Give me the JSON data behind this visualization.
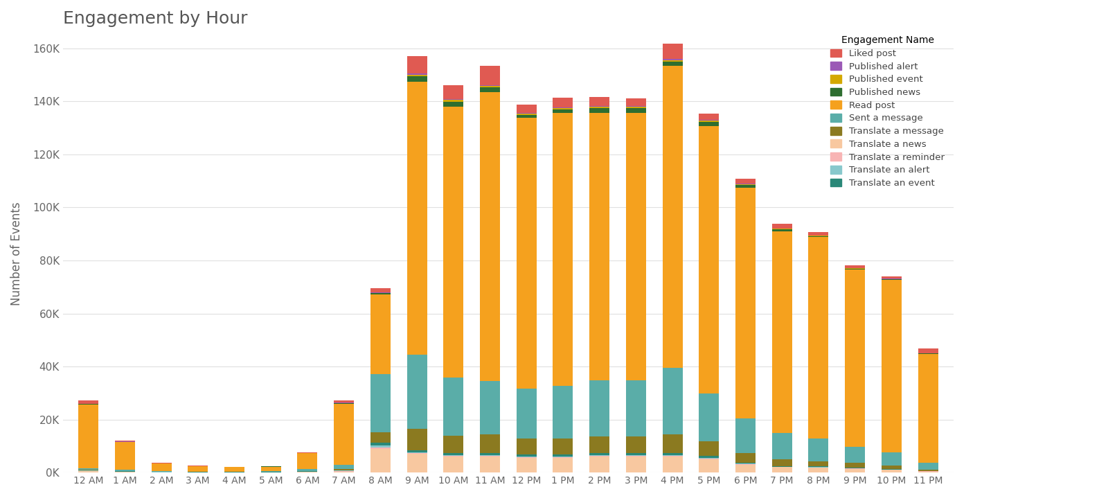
{
  "hours": [
    "12 AM",
    "1 AM",
    "2 AM",
    "3 AM",
    "4 AM",
    "5 AM",
    "6 AM",
    "7 AM",
    "8 AM",
    "9 AM",
    "10 AM",
    "11 AM",
    "12 PM",
    "1 PM",
    "2 PM",
    "3 PM",
    "4 PM",
    "5 PM",
    "6 PM",
    "7 PM",
    "8 PM",
    "9 PM",
    "10 PM",
    "11 PM"
  ],
  "title": "Engagement by Hour",
  "ylabel": "Number of Events",
  "ylim": [
    0,
    165000
  ],
  "yticks": [
    0,
    20000,
    40000,
    60000,
    80000,
    100000,
    120000,
    140000,
    160000
  ],
  "ytick_labels": [
    "0K",
    "20K",
    "40K",
    "60K",
    "80K",
    "100K",
    "120K",
    "140K",
    "160K"
  ],
  "legend_title": "Engagement Name",
  "series": {
    "Translate a news": [
      500,
      200,
      100,
      100,
      80,
      80,
      200,
      400,
      9000,
      7000,
      6000,
      6000,
      5500,
      5500,
      6000,
      6000,
      6000,
      5000,
      3000,
      2000,
      1800,
      1400,
      1000,
      400
    ],
    "Translate a reminder": [
      150,
      80,
      40,
      30,
      30,
      30,
      80,
      150,
      400,
      250,
      250,
      250,
      200,
      200,
      200,
      200,
      250,
      200,
      150,
      100,
      100,
      80,
      60,
      50
    ],
    "Translate an alert": [
      150,
      80,
      40,
      30,
      30,
      30,
      80,
      200,
      800,
      400,
      400,
      400,
      350,
      350,
      350,
      350,
      400,
      350,
      250,
      150,
      150,
      150,
      150,
      80
    ],
    "Translate an event": [
      150,
      80,
      40,
      30,
      30,
      30,
      80,
      200,
      1000,
      800,
      800,
      800,
      700,
      700,
      700,
      700,
      800,
      700,
      400,
      250,
      250,
      150,
      150,
      80
    ],
    "Translate a message": [
      250,
      150,
      80,
      60,
      50,
      60,
      200,
      500,
      4000,
      8000,
      6500,
      7000,
      6000,
      6000,
      6500,
      6500,
      7000,
      5500,
      3500,
      2500,
      2000,
      1800,
      1300,
      600
    ],
    "Sent a message": [
      400,
      400,
      150,
      150,
      150,
      300,
      600,
      1500,
      22000,
      28000,
      22000,
      20000,
      19000,
      20000,
      21000,
      21000,
      25000,
      18000,
      13000,
      10000,
      8500,
      6000,
      5000,
      2500
    ],
    "Read post": [
      24000,
      10500,
      3000,
      2000,
      1700,
      1700,
      6000,
      23000,
      30000,
      103000,
      102000,
      109000,
      102000,
      103000,
      101000,
      101000,
      114000,
      101000,
      87000,
      76000,
      76000,
      67000,
      65000,
      41000
    ],
    "Published news": [
      250,
      100,
      40,
      40,
      30,
      30,
      80,
      250,
      400,
      2000,
      2000,
      1800,
      1200,
      1300,
      1600,
      1600,
      1600,
      1500,
      1200,
      800,
      400,
      400,
      300,
      150
    ],
    "Published event": [
      80,
      40,
      15,
      15,
      15,
      15,
      40,
      80,
      150,
      600,
      550,
      550,
      500,
      500,
      550,
      550,
      550,
      500,
      300,
      200,
      150,
      150,
      80,
      40
    ],
    "Published alert": [
      80,
      40,
      15,
      15,
      15,
      15,
      40,
      80,
      150,
      400,
      300,
      300,
      250,
      250,
      250,
      250,
      300,
      250,
      150,
      100,
      80,
      80,
      40,
      40
    ],
    "Liked post": [
      1200,
      500,
      250,
      150,
      80,
      80,
      250,
      800,
      1700,
      6500,
      5200,
      7200,
      3000,
      3500,
      3500,
      3000,
      6000,
      2500,
      2000,
      1700,
      1300,
      1000,
      800,
      1800
    ]
  },
  "colors": {
    "Liked post": "#e05a52",
    "Published alert": "#9b59b6",
    "Published event": "#d4a800",
    "Published news": "#2e6e30",
    "Read post": "#f5a11e",
    "Sent a message": "#5aada8",
    "Translate a message": "#8b7a20",
    "Translate a news": "#f8c8a0",
    "Translate a reminder": "#f8b4b4",
    "Translate an alert": "#88c8cc",
    "Translate an event": "#2a8878"
  },
  "legend_order": [
    "Liked post",
    "Published alert",
    "Published event",
    "Published news",
    "Read post",
    "Sent a message",
    "Translate a message",
    "Translate a news",
    "Translate a reminder",
    "Translate an alert",
    "Translate an event"
  ],
  "stack_order": [
    "Translate a news",
    "Translate a reminder",
    "Translate an alert",
    "Translate an event",
    "Translate a message",
    "Sent a message",
    "Read post",
    "Published news",
    "Published event",
    "Published alert",
    "Liked post"
  ],
  "background_color": "#ffffff",
  "grid_color": "#e0e0e0"
}
